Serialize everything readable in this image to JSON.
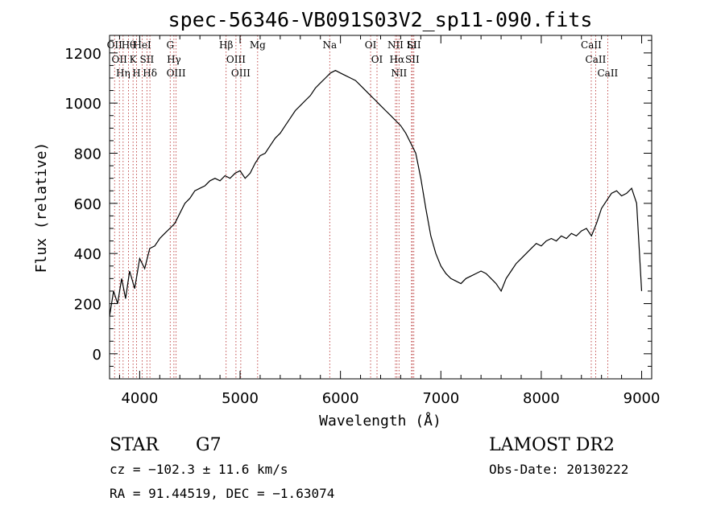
{
  "chart_data": {
    "type": "line",
    "title": "spec-56346-VB091S03V2_sp11-090.fits",
    "xlabel": "Wavelength (Å)",
    "ylabel": "Flux (relative)",
    "xlim": [
      3700,
      9100
    ],
    "ylim": [
      -100,
      1270
    ],
    "xticks": [
      4000,
      5000,
      6000,
      7000,
      8000,
      9000
    ],
    "yticks": [
      0,
      200,
      400,
      600,
      800,
      1000,
      1200
    ],
    "grid": false,
    "series": [
      {
        "x": [
          3700,
          3740,
          3780,
          3820,
          3860,
          3900,
          3950,
          4000,
          4050,
          4100,
          4150,
          4200,
          4250,
          4300,
          4350,
          4400,
          4450,
          4500,
          4550,
          4600,
          4650,
          4700,
          4750,
          4800,
          4850,
          4900,
          4950,
          5000,
          5050,
          5100,
          5150,
          5200,
          5250,
          5300,
          5350,
          5400,
          5450,
          5500,
          5550,
          5600,
          5650,
          5700,
          5750,
          5800,
          5850,
          5900,
          5950,
          6000,
          6050,
          6100,
          6150,
          6200,
          6250,
          6300,
          6350,
          6400,
          6450,
          6500,
          6550,
          6600,
          6650,
          6700,
          6750,
          6800,
          6850,
          6900,
          6950,
          7000,
          7050,
          7100,
          7150,
          7200,
          7250,
          7300,
          7350,
          7400,
          7450,
          7500,
          7550,
          7600,
          7650,
          7700,
          7750,
          7800,
          7850,
          7900,
          7950,
          8000,
          8050,
          8100,
          8150,
          8200,
          8250,
          8300,
          8350,
          8400,
          8450,
          8500,
          8550,
          8600,
          8650,
          8700,
          8750,
          8800,
          8850,
          8900,
          8950,
          9000
        ],
        "y": [
          150,
          250,
          200,
          300,
          220,
          330,
          260,
          380,
          340,
          420,
          430,
          460,
          480,
          500,
          520,
          560,
          600,
          620,
          650,
          660,
          670,
          690,
          700,
          690,
          710,
          700,
          720,
          730,
          700,
          720,
          760,
          790,
          800,
          830,
          860,
          880,
          910,
          940,
          970,
          990,
          1010,
          1030,
          1060,
          1080,
          1100,
          1120,
          1130,
          1120,
          1110,
          1100,
          1090,
          1070,
          1050,
          1030,
          1010,
          990,
          970,
          950,
          930,
          910,
          880,
          840,
          800,
          700,
          580,
          470,
          400,
          350,
          320,
          300,
          290,
          280,
          300,
          310,
          320,
          330,
          320,
          300,
          280,
          250,
          300,
          330,
          360,
          380,
          400,
          420,
          440,
          430,
          450,
          460,
          450,
          470,
          460,
          480,
          470,
          490,
          500,
          470,
          520,
          580,
          610,
          640,
          650,
          630,
          640,
          660,
          600,
          250
        ]
      }
    ],
    "line_markers": [
      {
        "wavelength": 3750,
        "label": "OII"
      },
      {
        "wavelength": 3798,
        "label": "OII"
      },
      {
        "wavelength": 3835,
        "label": "Hη"
      },
      {
        "wavelength": 3889,
        "label": "Hθ"
      },
      {
        "wavelength": 3934,
        "label": "K"
      },
      {
        "wavelength": 3969,
        "label": "H"
      },
      {
        "wavelength": 4026,
        "label": "HeI"
      },
      {
        "wavelength": 4072,
        "label": "SII"
      },
      {
        "wavelength": 4102,
        "label": "Hδ"
      },
      {
        "wavelength": 4304,
        "label": "G"
      },
      {
        "wavelength": 4341,
        "label": "Hγ"
      },
      {
        "wavelength": 4363,
        "label": "OIII"
      },
      {
        "wavelength": 4861,
        "label": "Hβ"
      },
      {
        "wavelength": 4959,
        "label": "OIII"
      },
      {
        "wavelength": 5007,
        "label": "OIII"
      },
      {
        "wavelength": 5175,
        "label": "Mg"
      },
      {
        "wavelength": 5893,
        "label": "Na"
      },
      {
        "wavelength": 6300,
        "label": "OI"
      },
      {
        "wavelength": 6364,
        "label": "OI"
      },
      {
        "wavelength": 6548,
        "label": "NII"
      },
      {
        "wavelength": 6563,
        "label": "Hα"
      },
      {
        "wavelength": 6583,
        "label": "NII"
      },
      {
        "wavelength": 6708,
        "label": "Li"
      },
      {
        "wavelength": 6716,
        "label": "SII"
      },
      {
        "wavelength": 6731,
        "label": "SII"
      },
      {
        "wavelength": 8498,
        "label": "CaII"
      },
      {
        "wavelength": 8542,
        "label": "CaII"
      },
      {
        "wavelength": 8662,
        "label": "CaII"
      }
    ]
  },
  "info": {
    "class_label": "STAR",
    "subclass": "G7",
    "survey": "LAMOST DR2",
    "cz": "cz = −102.3 ± 11.6 km/s",
    "obs_date": "Obs-Date: 20130222",
    "coords": "RA =  91.44519, DEC =  −1.63074"
  }
}
